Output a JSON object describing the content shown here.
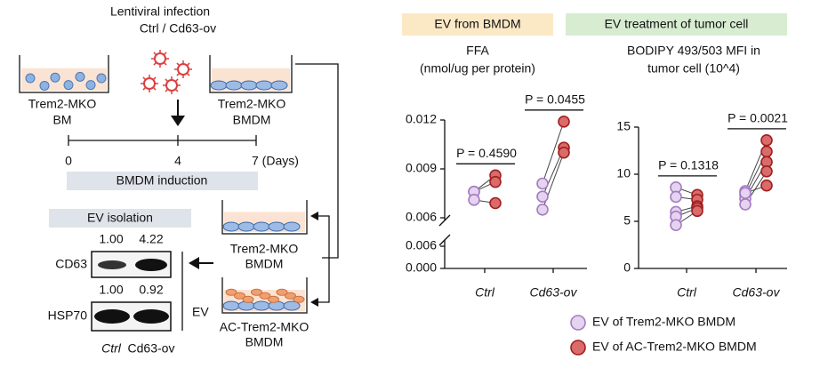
{
  "schematic": {
    "infection": "Lentiviral infection",
    "groups": "Ctrl / Cd63-ov",
    "bm": [
      "Trem2-MKO",
      "BM"
    ],
    "bmdm": [
      "Trem2-MKO",
      "BMDM"
    ],
    "timeline": [
      "0",
      "4",
      "7 (Days)"
    ],
    "induction": "BMDM induction",
    "recipient": [
      "Trem2-MKO",
      "BMDM"
    ],
    "ac_recipient": [
      "AC-Trem2-MKO",
      "BMDM"
    ]
  },
  "blot": {
    "title": "EV isolation",
    "rows": [
      {
        "name": "CD63",
        "quant": [
          "1.00",
          "4.22"
        ]
      },
      {
        "name": "HSP70",
        "quant": [
          "1.00",
          "0.92"
        ]
      }
    ],
    "lanes": [
      "Ctrl",
      "Cd63-ov"
    ],
    "fraction": "EV"
  },
  "chart_data": [
    {
      "type": "paired-dot",
      "header": "EV from BMDM",
      "header_color": "#fbe9c6",
      "title": [
        "FFA",
        "(nmol/ug per protein)"
      ],
      "categories": [
        "Ctrl",
        "Cd63-ov"
      ],
      "series": [
        {
          "name": "EV of Trem2-MKO BMDM",
          "color": "#e4d4ef",
          "edge": "#a57bc4",
          "values": [
            [
              0.0076,
              0.0076,
              0.0071
            ],
            [
              0.0081,
              0.0073,
              0.0065
            ]
          ]
        },
        {
          "name": "EV of AC-Trem2-MKO BMDM",
          "color": "#d96b6b",
          "edge": "#a11f1f",
          "values": [
            [
              0.0086,
              0.0082,
              0.0069
            ],
            [
              0.0119,
              0.0103,
              0.01
            ]
          ]
        }
      ],
      "ylim": [
        0.006,
        0.012
      ],
      "yticks": [
        0.006,
        0.009,
        0.012
      ],
      "lower_ylim": [
        0,
        0.006
      ],
      "lower_yticks": [
        {
          "value": 0,
          "label": "0.000"
        },
        0.006
      ],
      "annotations": [
        "P = 0.4590",
        "P = 0.0455"
      ]
    },
    {
      "type": "paired-dot",
      "header": "EV treatment of tumor cell",
      "header_color": "#d7ecd1",
      "title": [
        "BODIPY 493/503 MFI in",
        "tumor cell (10^4)"
      ],
      "categories": [
        "Ctrl",
        "Cd63-ov"
      ],
      "series": [
        {
          "color": "#e4d4ef",
          "edge": "#a57bc4",
          "values": [
            [
              8.6,
              7.6,
              6.0,
              5.5,
              4.6
            ],
            [
              8.2,
              7.8,
              7.4,
              6.8,
              8.0
            ]
          ]
        },
        {
          "color": "#d96b6b",
          "edge": "#a11f1f",
          "values": [
            [
              7.8,
              7.3,
              6.6,
              6.4,
              6.1
            ],
            [
              13.6,
              12.4,
              11.3,
              10.3,
              8.8
            ]
          ]
        }
      ],
      "ylim": [
        0,
        15
      ],
      "yticks": [
        0,
        5,
        10,
        15
      ],
      "annotations": [
        "P = 0.1318",
        "P = 0.0021"
      ]
    }
  ]
}
